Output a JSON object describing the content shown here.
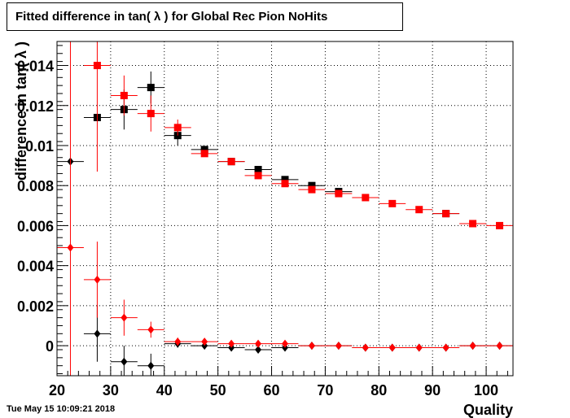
{
  "header": {
    "title": "Fitted difference in tan( λ ) for Global Rec Pion NoHits"
  },
  "footer": {
    "timestamp": "Tue May 15 10:09:21 2018"
  },
  "colors": {
    "black": "#000000",
    "red": "#ff0000",
    "grid": "#000000"
  },
  "chart_data": {
    "type": "scatter",
    "title": "Fitted difference in tan( λ ) for Global Rec Pion NoHits",
    "xlabel": "Quality",
    "ylabel": "difference in tan( λ )",
    "xlim": [
      20,
      105
    ],
    "ylim": [
      -0.0015,
      0.0152
    ],
    "grid": true,
    "x_ticks": [
      20,
      30,
      40,
      50,
      60,
      70,
      80,
      90,
      100
    ],
    "x_tick_labels": [
      "20",
      "30",
      "40",
      "50",
      "60",
      "70",
      "80",
      "90",
      "100"
    ],
    "y_ticks": [
      0,
      0.002,
      0.004,
      0.006,
      0.008,
      0.01,
      0.012,
      0.014
    ],
    "y_tick_labels": [
      "0",
      "0.002",
      "0.004",
      "0.006",
      "0.008",
      "0.01",
      "0.012",
      "0.014"
    ],
    "series": [
      {
        "marker": "square",
        "color": "#000000",
        "points": [
          {
            "x": 27.5,
            "y": 0.0114,
            "xerr": 2.5,
            "yerr": 0
          },
          {
            "x": 32.5,
            "y": 0.0118,
            "xerr": 2.5,
            "yerr": 0.001
          },
          {
            "x": 37.5,
            "y": 0.0129,
            "xerr": 2.5,
            "yerr": 0.0008
          },
          {
            "x": 42.5,
            "y": 0.0105,
            "xerr": 2.5,
            "yerr": 0.0005
          },
          {
            "x": 47.5,
            "y": 0.0098,
            "xerr": 2.5,
            "yerr": 0
          },
          {
            "x": 52.5,
            "y": 0.0092,
            "xerr": 2.5,
            "yerr": 0
          },
          {
            "x": 57.5,
            "y": 0.0088,
            "xerr": 2.5,
            "yerr": 0
          },
          {
            "x": 62.5,
            "y": 0.0083,
            "xerr": 2.5,
            "yerr": 0
          },
          {
            "x": 67.5,
            "y": 0.008,
            "xerr": 2.5,
            "yerr": 0
          },
          {
            "x": 72.5,
            "y": 0.0077,
            "xerr": 2.5,
            "yerr": 0
          },
          {
            "x": 92.5,
            "y": 0.0066,
            "xerr": 2.5,
            "yerr": 0
          }
        ]
      },
      {
        "marker": "square",
        "color": "#ff0000",
        "points": [
          {
            "x": 27.5,
            "y": 0.014,
            "xerr": 2.5,
            "yerr": 0.0053
          },
          {
            "x": 32.5,
            "y": 0.0125,
            "xerr": 2.5,
            "yerr": 0.001
          },
          {
            "x": 37.5,
            "y": 0.0116,
            "xerr": 2.5,
            "yerr": 0.0009
          },
          {
            "x": 42.5,
            "y": 0.0109,
            "xerr": 2.5,
            "yerr": 0.0004
          },
          {
            "x": 47.5,
            "y": 0.0096,
            "xerr": 2.5,
            "yerr": 0
          },
          {
            "x": 52.5,
            "y": 0.0092,
            "xerr": 2.5,
            "yerr": 0
          },
          {
            "x": 57.5,
            "y": 0.0085,
            "xerr": 2.5,
            "yerr": 0
          },
          {
            "x": 62.5,
            "y": 0.0081,
            "xerr": 2.5,
            "yerr": 0
          },
          {
            "x": 67.5,
            "y": 0.0078,
            "xerr": 2.5,
            "yerr": 0
          },
          {
            "x": 72.5,
            "y": 0.0076,
            "xerr": 2.5,
            "yerr": 0
          },
          {
            "x": 77.5,
            "y": 0.0074,
            "xerr": 2.5,
            "yerr": 0
          },
          {
            "x": 82.5,
            "y": 0.0071,
            "xerr": 2.5,
            "yerr": 0
          },
          {
            "x": 87.5,
            "y": 0.0068,
            "xerr": 2.5,
            "yerr": 0
          },
          {
            "x": 92.5,
            "y": 0.0066,
            "xerr": 2.5,
            "yerr": 0
          },
          {
            "x": 97.5,
            "y": 0.0061,
            "xerr": 2.5,
            "yerr": 0
          },
          {
            "x": 102.5,
            "y": 0.006,
            "xerr": 2.5,
            "yerr": 0
          }
        ]
      },
      {
        "marker": "diamond",
        "color": "#000000",
        "points": [
          {
            "x": 22.5,
            "y": 0.0092,
            "xerr": 2.5,
            "yerr": 0
          },
          {
            "x": 27.5,
            "y": 0.0006,
            "xerr": 2.5,
            "yerr": 0.0014
          },
          {
            "x": 32.5,
            "y": -0.0008,
            "xerr": 2.5,
            "yerr": 0.0008
          },
          {
            "x": 37.5,
            "y": -0.001,
            "xerr": 2.5,
            "yerr": 0.0006
          },
          {
            "x": 42.5,
            "y": 0.0001,
            "xerr": 2.5,
            "yerr": 0.0002
          },
          {
            "x": 47.5,
            "y": 0.0,
            "xerr": 2.5,
            "yerr": 0
          },
          {
            "x": 52.5,
            "y": -0.0001,
            "xerr": 2.5,
            "yerr": 0
          },
          {
            "x": 57.5,
            "y": -0.0002,
            "xerr": 2.5,
            "yerr": 0
          },
          {
            "x": 62.5,
            "y": -0.0001,
            "xerr": 2.5,
            "yerr": 0
          },
          {
            "x": 67.5,
            "y": 0.0,
            "xerr": 2.5,
            "yerr": 0
          },
          {
            "x": 72.5,
            "y": 0.0,
            "xerr": 2.5,
            "yerr": 0
          },
          {
            "x": 77.5,
            "y": -0.0001,
            "xerr": 2.5,
            "yerr": 0
          },
          {
            "x": 82.5,
            "y": -0.0001,
            "xerr": 2.5,
            "yerr": 0
          },
          {
            "x": 87.5,
            "y": -0.0001,
            "xerr": 2.5,
            "yerr": 0
          },
          {
            "x": 92.5,
            "y": -0.0001,
            "xerr": 2.5,
            "yerr": 0
          },
          {
            "x": 97.5,
            "y": 0.0,
            "xerr": 2.5,
            "yerr": 0
          },
          {
            "x": 102.5,
            "y": 0.0,
            "xerr": 2.5,
            "yerr": 0
          }
        ]
      },
      {
        "marker": "diamond",
        "color": "#ff0000",
        "points": [
          {
            "x": 22.5,
            "y": 0.0049,
            "xerr": 2.5,
            "yerr": 0.0152
          },
          {
            "x": 27.5,
            "y": 0.0033,
            "xerr": 2.5,
            "yerr": 0.0019
          },
          {
            "x": 32.5,
            "y": 0.0014,
            "xerr": 2.5,
            "yerr": 0.0009
          },
          {
            "x": 37.5,
            "y": 0.0008,
            "xerr": 2.5,
            "yerr": 0.0004
          },
          {
            "x": 42.5,
            "y": 0.0002,
            "xerr": 2.5,
            "yerr": 0.0002
          },
          {
            "x": 47.5,
            "y": 0.0002,
            "xerr": 2.5,
            "yerr": 0
          },
          {
            "x": 52.5,
            "y": 0.0001,
            "xerr": 2.5,
            "yerr": 0
          },
          {
            "x": 57.5,
            "y": 0.0001,
            "xerr": 2.5,
            "yerr": 0
          },
          {
            "x": 62.5,
            "y": 0.0001,
            "xerr": 2.5,
            "yerr": 0
          },
          {
            "x": 67.5,
            "y": 0.0,
            "xerr": 2.5,
            "yerr": 0
          },
          {
            "x": 72.5,
            "y": 0.0,
            "xerr": 2.5,
            "yerr": 0
          },
          {
            "x": 77.5,
            "y": -0.0001,
            "xerr": 2.5,
            "yerr": 0
          },
          {
            "x": 82.5,
            "y": -0.0001,
            "xerr": 2.5,
            "yerr": 0
          },
          {
            "x": 87.5,
            "y": -0.0001,
            "xerr": 2.5,
            "yerr": 0
          },
          {
            "x": 92.5,
            "y": -0.0001,
            "xerr": 2.5,
            "yerr": 0
          },
          {
            "x": 97.5,
            "y": 0.0,
            "xerr": 2.5,
            "yerr": 0
          },
          {
            "x": 102.5,
            "y": 0.0,
            "xerr": 2.5,
            "yerr": 0
          }
        ]
      }
    ]
  }
}
